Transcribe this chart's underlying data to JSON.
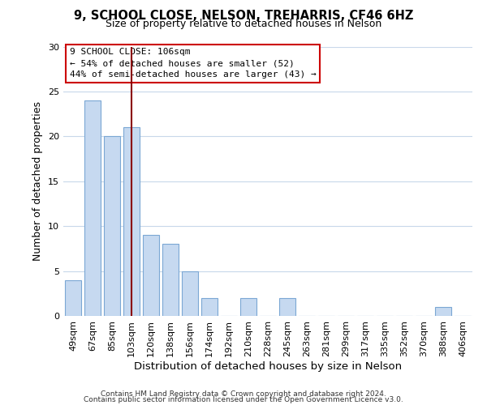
{
  "title1": "9, SCHOOL CLOSE, NELSON, TREHARRIS, CF46 6HZ",
  "title2": "Size of property relative to detached houses in Nelson",
  "xlabel": "Distribution of detached houses by size in Nelson",
  "ylabel": "Number of detached properties",
  "bar_labels": [
    "49sqm",
    "67sqm",
    "85sqm",
    "103sqm",
    "120sqm",
    "138sqm",
    "156sqm",
    "174sqm",
    "192sqm",
    "210sqm",
    "228sqm",
    "245sqm",
    "263sqm",
    "281sqm",
    "299sqm",
    "317sqm",
    "335sqm",
    "352sqm",
    "370sqm",
    "388sqm",
    "406sqm"
  ],
  "bar_values": [
    4,
    24,
    20,
    21,
    9,
    8,
    5,
    2,
    0,
    2,
    0,
    2,
    0,
    0,
    0,
    0,
    0,
    0,
    0,
    1,
    0
  ],
  "bar_color": "#c6d9f0",
  "bar_edgecolor": "#7ba7d4",
  "vline_x_index": 3,
  "vline_color": "#8b0000",
  "annotation_title": "9 SCHOOL CLOSE: 106sqm",
  "annotation_line1": "← 54% of detached houses are smaller (52)",
  "annotation_line2": "44% of semi-detached houses are larger (43) →",
  "annotation_box_color": "#ffffff",
  "annotation_box_edgecolor": "#cc0000",
  "ylim": [
    0,
    30
  ],
  "yticks": [
    0,
    5,
    10,
    15,
    20,
    25,
    30
  ],
  "footer1": "Contains HM Land Registry data © Crown copyright and database right 2024.",
  "footer2": "Contains public sector information licensed under the Open Government Licence v3.0.",
  "background_color": "#ffffff",
  "grid_color": "#c8d8ea"
}
